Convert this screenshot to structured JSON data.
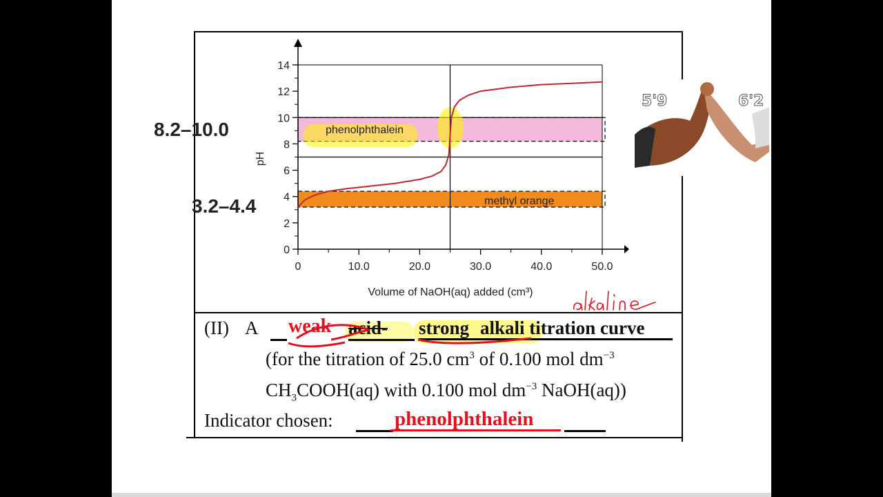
{
  "chart_data": {
    "type": "line",
    "xlabel": "Volume of NaOH(aq) added (cm³)",
    "ylabel": "pH",
    "xlim": [
      0,
      50
    ],
    "ylim": [
      0,
      14
    ],
    "x_ticks": [
      "0",
      "10.0",
      "20.0",
      "30.0",
      "40.0",
      "50.0"
    ],
    "y_ticks": [
      "0",
      "2",
      "4",
      "6",
      "8",
      "10",
      "12",
      "14"
    ],
    "series": [
      {
        "x": [
          0,
          1,
          2,
          3,
          5,
          8,
          12,
          16,
          20,
          22,
          23.5,
          24.3,
          24.8,
          25,
          25.2,
          25.7,
          26.5,
          28,
          30,
          35,
          40,
          45,
          50
        ],
        "y": [
          3.2,
          3.7,
          3.95,
          4.15,
          4.4,
          4.6,
          4.8,
          5.0,
          5.3,
          5.55,
          5.9,
          6.4,
          7.2,
          8.7,
          10.0,
          10.8,
          11.3,
          11.7,
          12.0,
          12.3,
          12.5,
          12.6,
          12.7
        ]
      }
    ],
    "equivalence_volume": 25,
    "annotations": [
      {
        "text": "phenolphthalein",
        "range": [
          8.2,
          10.0
        ],
        "color": "#f4b8dc"
      },
      {
        "text": "methyl orange",
        "range": [
          3.2,
          4.4
        ],
        "color": "#f08c1e"
      }
    ],
    "grid": false
  },
  "labels": {
    "phenolphthalein_range": "8.2–10.0",
    "methyl_orange_range": "3.2–4.4"
  },
  "question": {
    "number": "(II)",
    "a": "A",
    "answer_weak": "weak",
    "acid_word": "acid-",
    "answer_strong": "strong",
    "rest": "alkali titration curve",
    "line2_pre": "(for the titration of 25.0 cm",
    "line2_sup": "3",
    "line2_mid": " of 0.100 mol dm",
    "line2_sup2": "−3",
    "line3_a": "CH",
    "line3_sub": "3",
    "line3_b": "COOH(aq) with 0.100 mol dm",
    "line3_sup": "−3",
    "line3_c": " NaOH(aq))",
    "indicator_label": "Indicator chosen:",
    "indicator_answer": "phenolphthalein"
  },
  "handwriting": "alkaline",
  "photo": {
    "left_height": "5'9",
    "right_height": "6'2"
  },
  "colors": {
    "curve": "#c0262d",
    "phenol_band": "#f4b8dc",
    "methyl_band": "#f08c1e",
    "highlight": "#fff200",
    "answer_red": "#e3101e"
  }
}
